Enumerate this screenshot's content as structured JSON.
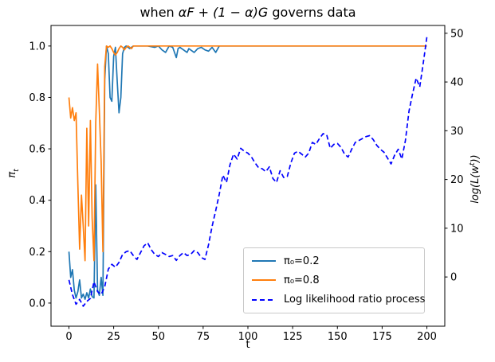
{
  "figure": {
    "title_pre": "when ",
    "title_math": "αF + (1 − α)G",
    "title_post": " governs data",
    "xlabel": "t",
    "ylabel_left": {
      "base": "π",
      "sub": "t"
    },
    "ylabel_right": {
      "pre": "log(L(w",
      "sup": "t",
      "post": "))"
    }
  },
  "legend": {
    "entries": [
      {
        "label": "π₀=0.2",
        "color": "#1f77b4",
        "dashed": false
      },
      {
        "label": "π₀=0.8",
        "color": "#ff7f0e",
        "dashed": false
      },
      {
        "label": "Log likelihood ratio process",
        "color": "#0000ff",
        "dashed": true
      }
    ]
  },
  "chart_data": {
    "type": "line",
    "title": "when αF + (1 − α)G governs data",
    "xlabel": "t",
    "ylabel_left": "π_t",
    "ylabel_right": "log(L(w^t))",
    "legend_position": "lower right",
    "grid": false,
    "x_axis": {
      "lim": [
        -10,
        210
      ],
      "ticks": [
        0,
        25,
        50,
        75,
        100,
        125,
        150,
        175,
        200
      ]
    },
    "left_axis": {
      "lim": [
        -0.09,
        1.08
      ],
      "ticks": [
        "0.0",
        "0.2",
        "0.4",
        "0.6",
        "0.8",
        "1.0"
      ]
    },
    "right_axis": {
      "lim": [
        -10.1,
        51.6
      ],
      "ticks": [
        0,
        10,
        20,
        30,
        40,
        50
      ]
    },
    "series": [
      {
        "name": "π₀=0.2",
        "axis": "left",
        "color": "#1f77b4",
        "style": "solid",
        "points": [
          [
            0,
            0.2
          ],
          [
            1,
            0.1
          ],
          [
            2,
            0.13
          ],
          [
            3,
            0.05
          ],
          [
            4,
            0.02
          ],
          [
            5,
            0.045
          ],
          [
            6,
            0.09
          ],
          [
            7,
            0.02
          ],
          [
            8,
            0.035
          ],
          [
            9,
            0.015
          ],
          [
            10,
            0.04
          ],
          [
            11,
            0.02
          ],
          [
            12,
            0.055
          ],
          [
            13,
            0.025
          ],
          [
            14,
            0.02
          ],
          [
            15,
            0.46
          ],
          [
            16,
            0.05
          ],
          [
            17,
            0.03
          ],
          [
            18,
            0.1
          ],
          [
            19,
            0.03
          ],
          [
            20,
            0.87
          ],
          [
            21,
            1.0
          ],
          [
            22,
            0.97
          ],
          [
            23,
            0.8
          ],
          [
            24,
            0.785
          ],
          [
            25,
            0.96
          ],
          [
            26,
            0.995
          ],
          [
            27,
            0.86
          ],
          [
            28,
            0.74
          ],
          [
            29,
            0.8
          ],
          [
            30,
            0.97
          ],
          [
            31,
            0.995
          ],
          [
            32,
            1.0
          ],
          [
            34,
            0.99
          ],
          [
            36,
            1.0
          ],
          [
            40,
            1.0
          ],
          [
            44,
            1.0
          ],
          [
            48,
            0.995
          ],
          [
            50,
            1.0
          ],
          [
            52,
            0.985
          ],
          [
            54,
            0.975
          ],
          [
            56,
            1.0
          ],
          [
            58,
            0.995
          ],
          [
            60,
            0.955
          ],
          [
            61,
            0.99
          ],
          [
            62,
            0.995
          ],
          [
            64,
            0.985
          ],
          [
            66,
            0.975
          ],
          [
            67,
            0.99
          ],
          [
            68,
            0.985
          ],
          [
            70,
            0.975
          ],
          [
            72,
            0.99
          ],
          [
            74,
            0.995
          ],
          [
            76,
            0.985
          ],
          [
            78,
            0.98
          ],
          [
            80,
            0.995
          ],
          [
            82,
            0.975
          ],
          [
            84,
            1.0
          ],
          [
            120,
            1.0
          ],
          [
            160,
            1.0
          ],
          [
            200,
            1.0
          ]
        ]
      },
      {
        "name": "π₀=0.8",
        "axis": "left",
        "color": "#ff7f0e",
        "style": "solid",
        "points": [
          [
            0,
            0.8
          ],
          [
            1,
            0.72
          ],
          [
            2,
            0.76
          ],
          [
            3,
            0.71
          ],
          [
            4,
            0.74
          ],
          [
            5,
            0.46
          ],
          [
            6,
            0.21
          ],
          [
            7,
            0.42
          ],
          [
            8,
            0.3
          ],
          [
            9,
            0.165
          ],
          [
            10,
            0.68
          ],
          [
            11,
            0.3
          ],
          [
            12,
            0.71
          ],
          [
            13,
            0.33
          ],
          [
            14,
            0.165
          ],
          [
            15,
            0.7
          ],
          [
            16,
            0.93
          ],
          [
            17,
            0.75
          ],
          [
            18,
            0.55
          ],
          [
            19,
            0.2
          ],
          [
            20,
            0.92
          ],
          [
            21,
            1.0
          ],
          [
            22,
            0.995
          ],
          [
            23,
            1.0
          ],
          [
            24,
            0.99
          ],
          [
            25,
            0.975
          ],
          [
            26,
            0.965
          ],
          [
            27,
            0.975
          ],
          [
            28,
            0.99
          ],
          [
            29,
            1.0
          ],
          [
            30,
            0.995
          ],
          [
            31,
            0.985
          ],
          [
            32,
            0.995
          ],
          [
            33,
            1.0
          ],
          [
            35,
            0.99
          ],
          [
            36,
            1.0
          ],
          [
            60,
            1.0
          ],
          [
            120,
            1.0
          ],
          [
            200,
            1.0
          ]
        ]
      },
      {
        "name": "Log likelihood ratio process",
        "axis": "right",
        "color": "#0000ff",
        "style": "dashed",
        "points": [
          [
            0,
            -0.6
          ],
          [
            2,
            -3.6
          ],
          [
            4,
            -5.6
          ],
          [
            6,
            -4.6
          ],
          [
            8,
            -6.0
          ],
          [
            10,
            -5.0
          ],
          [
            12,
            -4.4
          ],
          [
            14,
            -1.0
          ],
          [
            16,
            -3.0
          ],
          [
            18,
            -3.6
          ],
          [
            20,
            -2.0
          ],
          [
            22,
            1.6
          ],
          [
            24,
            2.6
          ],
          [
            26,
            2.0
          ],
          [
            28,
            3.0
          ],
          [
            30,
            4.6
          ],
          [
            32,
            5.2
          ],
          [
            34,
            5.4
          ],
          [
            36,
            4.4
          ],
          [
            38,
            3.6
          ],
          [
            40,
            5.0
          ],
          [
            42,
            6.4
          ],
          [
            44,
            7.0
          ],
          [
            46,
            5.6
          ],
          [
            48,
            4.6
          ],
          [
            50,
            4.2
          ],
          [
            52,
            5.0
          ],
          [
            54,
            4.6
          ],
          [
            56,
            4.2
          ],
          [
            58,
            4.4
          ],
          [
            60,
            3.4
          ],
          [
            62,
            4.4
          ],
          [
            64,
            5.0
          ],
          [
            66,
            4.4
          ],
          [
            68,
            4.6
          ],
          [
            70,
            5.4
          ],
          [
            72,
            5.0
          ],
          [
            74,
            4.0
          ],
          [
            76,
            3.6
          ],
          [
            78,
            6.6
          ],
          [
            80,
            10.4
          ],
          [
            82,
            13.6
          ],
          [
            84,
            17.0
          ],
          [
            86,
            20.9
          ],
          [
            88,
            19.4
          ],
          [
            90,
            23.0
          ],
          [
            92,
            25.2
          ],
          [
            94,
            24.2
          ],
          [
            96,
            26.4
          ],
          [
            98,
            25.8
          ],
          [
            100,
            25.4
          ],
          [
            102,
            24.6
          ],
          [
            104,
            23.4
          ],
          [
            106,
            22.4
          ],
          [
            108,
            22.2
          ],
          [
            110,
            21.6
          ],
          [
            112,
            22.6
          ],
          [
            114,
            20.2
          ],
          [
            116,
            19.4
          ],
          [
            118,
            21.8
          ],
          [
            120,
            20.4
          ],
          [
            122,
            20.6
          ],
          [
            124,
            23.4
          ],
          [
            126,
            25.4
          ],
          [
            128,
            25.8
          ],
          [
            130,
            25.2
          ],
          [
            132,
            24.6
          ],
          [
            134,
            25.4
          ],
          [
            136,
            27.6
          ],
          [
            138,
            27.2
          ],
          [
            140,
            28.4
          ],
          [
            142,
            29.4
          ],
          [
            144,
            29.2
          ],
          [
            146,
            26.4
          ],
          [
            148,
            27.2
          ],
          [
            150,
            27.4
          ],
          [
            152,
            26.6
          ],
          [
            154,
            25.2
          ],
          [
            156,
            24.6
          ],
          [
            158,
            26.2
          ],
          [
            160,
            27.6
          ],
          [
            162,
            28.0
          ],
          [
            164,
            28.4
          ],
          [
            166,
            28.8
          ],
          [
            168,
            29.0
          ],
          [
            170,
            28.2
          ],
          [
            172,
            27.0
          ],
          [
            174,
            26.2
          ],
          [
            176,
            25.6
          ],
          [
            178,
            24.4
          ],
          [
            180,
            23.2
          ],
          [
            182,
            25.0
          ],
          [
            184,
            26.2
          ],
          [
            186,
            24.2
          ],
          [
            188,
            28.0
          ],
          [
            190,
            34.0
          ],
          [
            192,
            37.6
          ],
          [
            194,
            40.8
          ],
          [
            196,
            39.0
          ],
          [
            198,
            44.0
          ],
          [
            200,
            49.2
          ]
        ]
      }
    ]
  }
}
